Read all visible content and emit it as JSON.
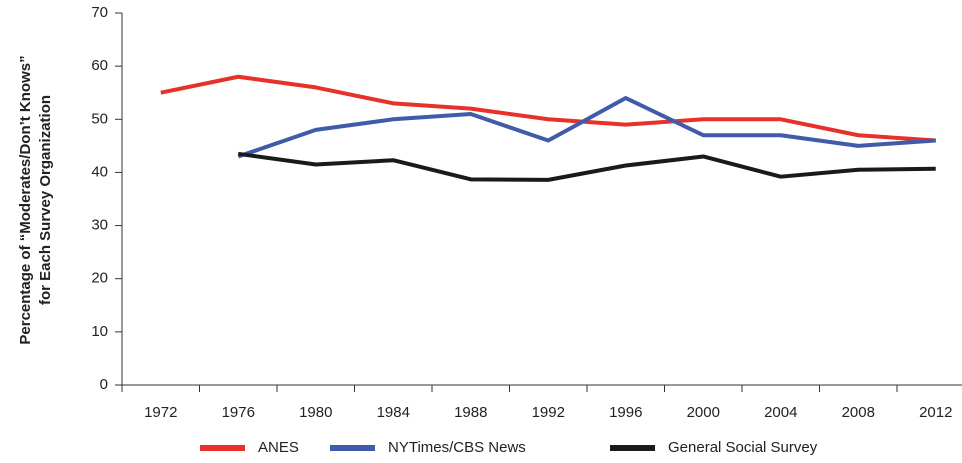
{
  "chart_data": {
    "type": "line",
    "ylabel": [
      "Percentage of “Moderates/Don’t Knows”",
      "for Each Survey Organization"
    ],
    "categories": [
      "1972",
      "1976",
      "1980",
      "1984",
      "1988",
      "1992",
      "1996",
      "2000",
      "2004",
      "2008",
      "2012"
    ],
    "series": [
      {
        "name": "ANES",
        "color": "#e8312a",
        "values": [
          55,
          58,
          56,
          53,
          52,
          50,
          49,
          50,
          50,
          47,
          46
        ]
      },
      {
        "name": "NYTimes/CBS News",
        "color": "#3f5ba9",
        "values": [
          null,
          43,
          48,
          50,
          51,
          46,
          54,
          47,
          47,
          45,
          46
        ]
      },
      {
        "name": "General Social Survey",
        "color": "#1a1a1a",
        "values": [
          null,
          43.5,
          41.5,
          42.3,
          38.7,
          38.6,
          41.3,
          43,
          39.2,
          40.5,
          40.7
        ]
      }
    ],
    "ylim": [
      0,
      70
    ],
    "yticks": [
      0,
      10,
      20,
      30,
      40,
      50,
      60,
      70
    ],
    "grid": false,
    "legend": "bottom"
  }
}
